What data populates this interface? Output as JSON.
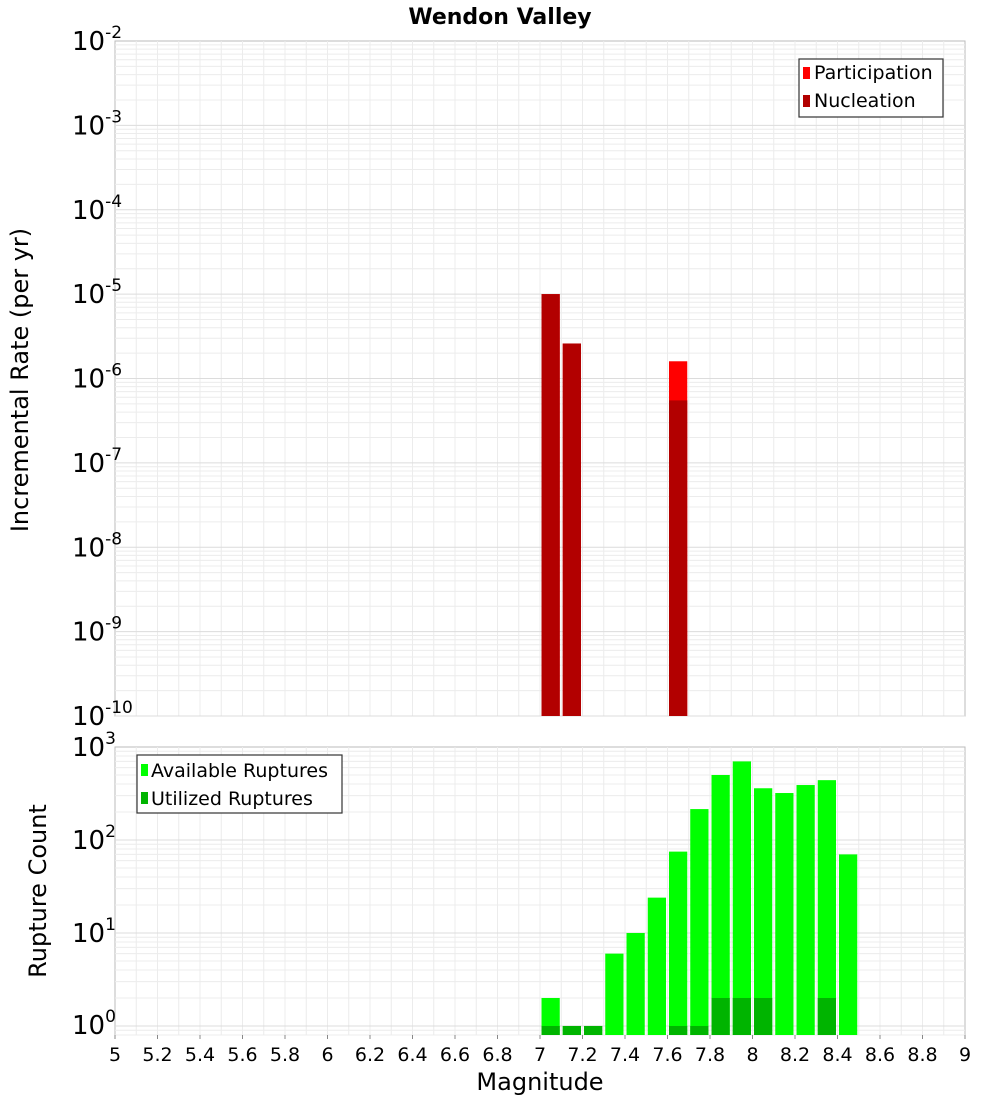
{
  "chart_data": [
    {
      "type": "bar",
      "title": "Wendon Valley",
      "xlabel": "Magnitude",
      "ylabel": "Incremental Rate (per yr)",
      "yscale": "log",
      "ylim": [
        1e-10,
        0.01
      ],
      "xlim": [
        5,
        9
      ],
      "grid": true,
      "legend_position": "top-right",
      "y_tick_labels": [
        {
          "base": "10",
          "exp": "-2",
          "value": 0.01
        },
        {
          "base": "10",
          "exp": "-3",
          "value": 0.001
        },
        {
          "base": "10",
          "exp": "-4",
          "value": 0.0001
        },
        {
          "base": "10",
          "exp": "-5",
          "value": 1e-05
        },
        {
          "base": "10",
          "exp": "-6",
          "value": 1e-06
        },
        {
          "base": "10",
          "exp": "-7",
          "value": 1e-07
        },
        {
          "base": "10",
          "exp": "-8",
          "value": 1e-08
        },
        {
          "base": "10",
          "exp": "-9",
          "value": 1e-09
        },
        {
          "base": "10",
          "exp": "-10",
          "value": 1e-10
        }
      ],
      "series": [
        {
          "name": "Participation",
          "color": "#ff0000",
          "x": [
            7.05,
            7.15,
            7.65
          ],
          "values": [
            1e-05,
            2.6e-06,
            1.6e-06
          ]
        },
        {
          "name": "Nucleation",
          "color": "#b20000",
          "x": [
            7.05,
            7.15,
            7.65
          ],
          "values": [
            1e-05,
            2.6e-06,
            5.5e-07
          ]
        }
      ]
    },
    {
      "type": "bar",
      "xlabel": "Magnitude",
      "ylabel": "Rupture Count",
      "yscale": "log",
      "ylim": [
        0.8,
        1000
      ],
      "xlim": [
        5,
        9
      ],
      "grid": true,
      "legend_position": "top-left",
      "y_tick_labels": [
        {
          "base": "10",
          "exp": "3",
          "value": 1000
        },
        {
          "base": "10",
          "exp": "2",
          "value": 100
        },
        {
          "base": "10",
          "exp": "1",
          "value": 10
        },
        {
          "base": "10",
          "exp": "0",
          "value": 1
        }
      ],
      "x_tick_labels": [
        "5",
        "5.2",
        "5.4",
        "5.6",
        "5.8",
        "6",
        "6.2",
        "6.4",
        "6.6",
        "6.8",
        "7",
        "7.2",
        "7.4",
        "7.6",
        "7.8",
        "8",
        "8.2",
        "8.4",
        "8.6",
        "8.8",
        "9"
      ],
      "series": [
        {
          "name": "Available Ruptures",
          "color": "#00ff00",
          "x": [
            7.05,
            7.15,
            7.25,
            7.35,
            7.45,
            7.55,
            7.65,
            7.75,
            7.85,
            7.95,
            8.05,
            8.15,
            8.25,
            8.35,
            8.45
          ],
          "values": [
            2,
            1,
            1,
            6,
            10,
            24,
            75,
            215,
            500,
            700,
            360,
            320,
            390,
            440,
            70
          ]
        },
        {
          "name": "Utilized Ruptures",
          "color": "#00b400",
          "x": [
            7.05,
            7.15,
            7.25,
            7.65,
            7.75,
            7.85,
            7.95,
            8.05,
            8.35
          ],
          "values": [
            1,
            1,
            1,
            1,
            1,
            2,
            2,
            2,
            2
          ]
        }
      ]
    }
  ]
}
